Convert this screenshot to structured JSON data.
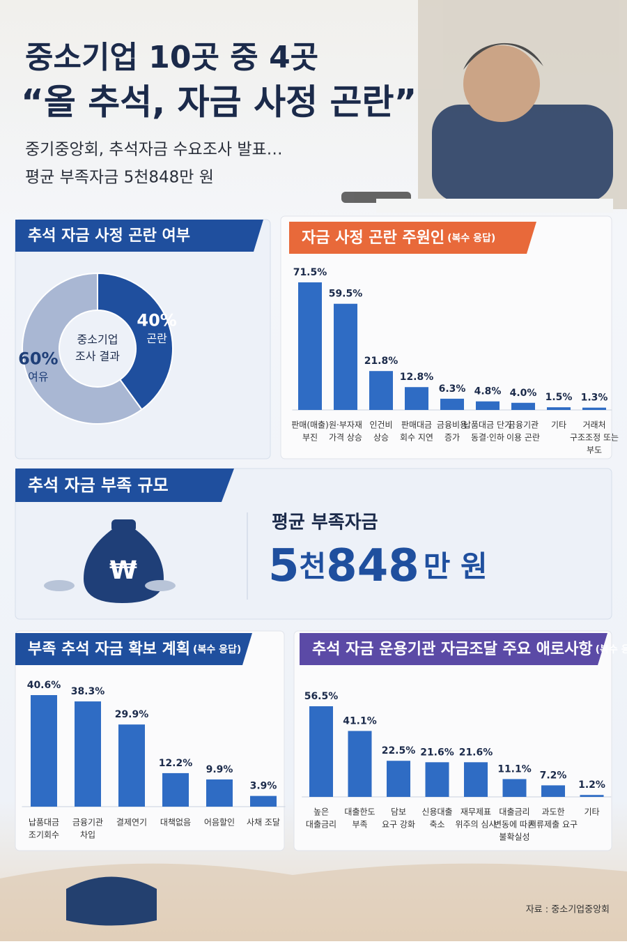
{
  "header": {
    "title_line1": "중소기업 10곳 중 4곳",
    "title_line2": "“올 추석, 자금 사정 곤란”",
    "subtitle_line1": "중기중앙회, 추석자금 수요조사 발표…",
    "subtitle_line2": "평균 부족자금 5천848만 원"
  },
  "chart_data": [
    {
      "type": "pie",
      "title": "추석 자금 사정 곤란 여부",
      "center_label": [
        "중소기업",
        "조사 결과"
      ],
      "categories": [
        "곤란",
        "여유"
      ],
      "values": [
        40,
        60
      ],
      "value_labels": [
        "40%",
        "60%"
      ],
      "colors": [
        "#1f4f9e",
        "#a9b7d3"
      ]
    },
    {
      "type": "bar",
      "title": "자금 사정 곤란 주원인",
      "title_note": "(복수 응답)",
      "color": "#2f6cc4",
      "categories": [
        [
          "판매(매출)",
          "부진"
        ],
        [
          "원·부자재",
          "가격 상승"
        ],
        [
          "인건비",
          "상승"
        ],
        [
          "판매대금",
          "회수 지연"
        ],
        [
          "금융비용",
          "증가"
        ],
        [
          "납품대금 단가",
          "동결·인하"
        ],
        [
          "금융기관",
          "이용 곤란"
        ],
        [
          "기타"
        ],
        [
          "거래처",
          "구조조정 또는",
          "부도"
        ]
      ],
      "values": [
        71.5,
        59.5,
        21.8,
        12.8,
        6.3,
        4.8,
        4.0,
        1.5,
        1.3
      ],
      "value_labels": [
        "71.5%",
        "59.5%",
        "21.8%",
        "12.8%",
        "6.3%",
        "4.8%",
        "4.0%",
        "1.5%",
        "1.3%"
      ]
    },
    {
      "type": "bar",
      "title": "부족 추석 자금 확보 계획",
      "title_note": "(복수 응답)",
      "color": "#2f6cc4",
      "categories": [
        [
          "납품대금",
          "조기회수"
        ],
        [
          "금융기관",
          "차입"
        ],
        [
          "결제연기"
        ],
        [
          "대책없음"
        ],
        [
          "어음할인"
        ],
        [
          "사채 조달"
        ]
      ],
      "values": [
        40.6,
        38.3,
        29.9,
        12.2,
        9.9,
        3.9
      ],
      "value_labels": [
        "40.6%",
        "38.3%",
        "29.9%",
        "12.2%",
        "9.9%",
        "3.9%"
      ]
    },
    {
      "type": "bar",
      "title": "추석 자금 운용기관 자금조달 주요 애로사항",
      "title_note": "(복수 응답)",
      "color": "#2f6cc4",
      "categories": [
        [
          "높은",
          "대출금리"
        ],
        [
          "대출한도",
          "부족"
        ],
        [
          "담보",
          "요구 강화"
        ],
        [
          "신용대출",
          "축소"
        ],
        [
          "재무제표",
          "위주의 심사"
        ],
        [
          "대출금리",
          "변동에 따른",
          "불확실성"
        ],
        [
          "과도한",
          "서류제출 요구"
        ],
        [
          "기타"
        ]
      ],
      "values": [
        56.5,
        41.1,
        22.5,
        21.6,
        21.6,
        11.1,
        7.2,
        1.2
      ],
      "value_labels": [
        "56.5%",
        "41.1%",
        "22.5%",
        "21.6%",
        "21.6%",
        "11.1%",
        "7.2%",
        "1.2%"
      ]
    }
  ],
  "shortfall": {
    "title": "추석 자금 부족 규모",
    "label": "평균 부족자금",
    "amount_parts": [
      "5",
      "천",
      "848",
      "만 원"
    ]
  },
  "source": "자료 : 중소기업중앙회"
}
